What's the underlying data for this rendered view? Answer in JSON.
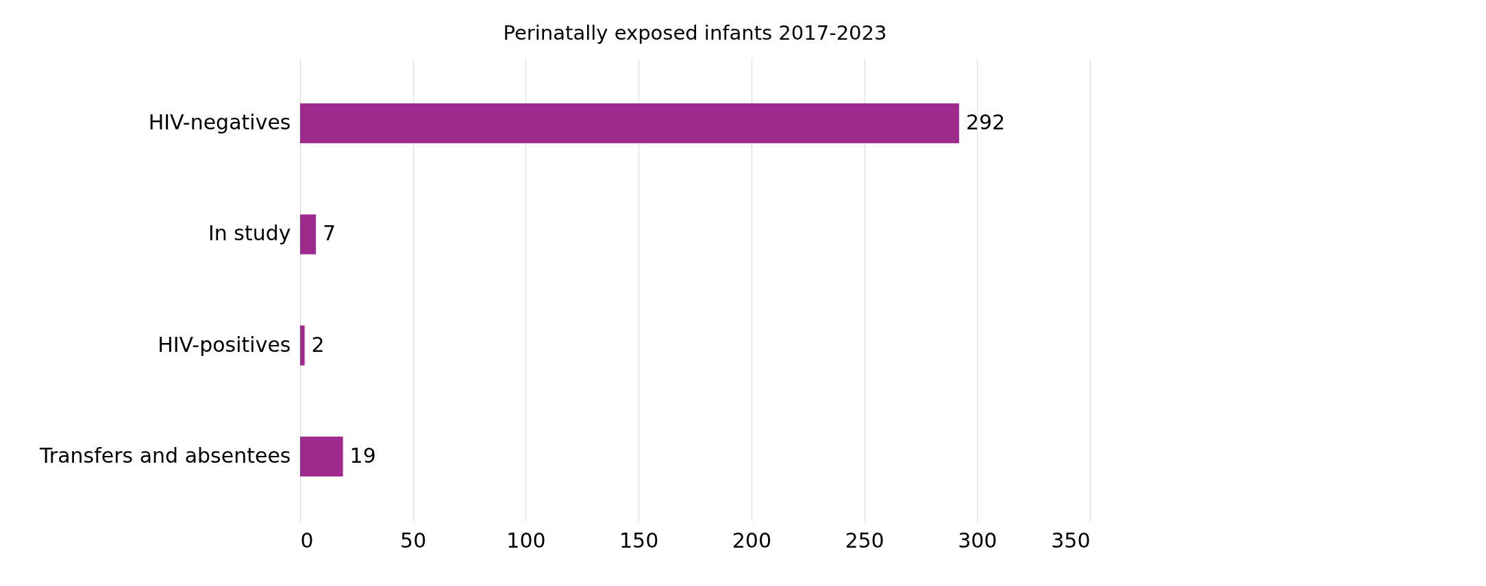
{
  "chart_data": {
    "type": "bar",
    "orientation": "horizontal",
    "title": "Perinatally exposed infants 2017-2023",
    "categories": [
      "HIV-negatives",
      "In study",
      "HIV-positives",
      "Transfers and absentees"
    ],
    "values": [
      292,
      7,
      2,
      19
    ],
    "color": "#9e2a8e",
    "xlim": [
      0,
      350
    ],
    "xticks": [
      0,
      50,
      100,
      150,
      200,
      250,
      300,
      350
    ],
    "grid": "x",
    "data_labels": true
  }
}
